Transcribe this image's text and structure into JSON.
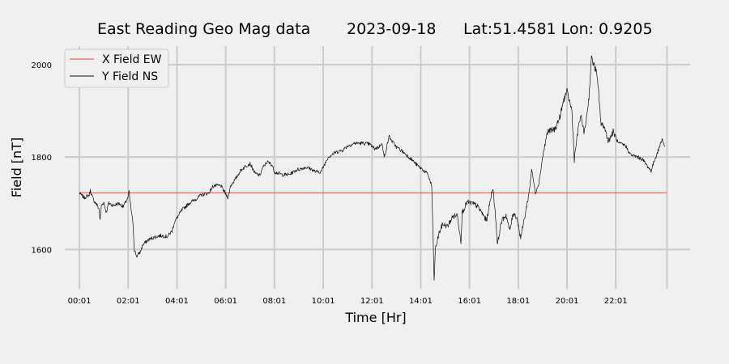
{
  "chart_data": {
    "type": "line",
    "title": {
      "name": "East Reading Geo Mag data",
      "date": "2023-09-18",
      "location": "Lat:51.4581  Lon: 0.9205"
    },
    "xlabel": "Time  [Hr]",
    "ylabel": "Field  [nT]",
    "x_unit": "hours",
    "xlim": [
      -0.6,
      25.05
    ],
    "ylim": [
      1515,
      2040
    ],
    "x_ticks": [
      {
        "x": 0.0,
        "label": "00:01"
      },
      {
        "x": 2.0,
        "label": "02:01"
      },
      {
        "x": 4.0,
        "label": "04:01"
      },
      {
        "x": 6.0,
        "label": "06:01"
      },
      {
        "x": 8.0,
        "label": "08:01"
      },
      {
        "x": 10.0,
        "label": "10:01"
      },
      {
        "x": 12.0,
        "label": "12:01"
      },
      {
        "x": 14.0,
        "label": "14:01"
      },
      {
        "x": 16.0,
        "label": "16:01"
      },
      {
        "x": 18.0,
        "label": "18:01"
      },
      {
        "x": 20.0,
        "label": "20:01"
      },
      {
        "x": 22.0,
        "label": "22:01"
      }
    ],
    "y_ticks": [
      1600,
      1800,
      2000
    ],
    "grid": true,
    "extra_x_gridlines": [
      24.1
    ],
    "legend": {
      "placement": "top-left"
    },
    "series": [
      {
        "name": "X Field EW",
        "color": "#e8432e",
        "points": [
          [
            0.0,
            1723
          ],
          [
            24.1,
            1723
          ]
        ]
      },
      {
        "name": "Y Field NS",
        "color": "#111111",
        "points": [
          [
            0.0,
            1722
          ],
          [
            0.2,
            1712
          ],
          [
            0.4,
            1718
          ],
          [
            0.45,
            1728
          ],
          [
            0.5,
            1718
          ],
          [
            0.6,
            1705
          ],
          [
            0.7,
            1698
          ],
          [
            0.8,
            1688
          ],
          [
            0.85,
            1662
          ],
          [
            0.9,
            1695
          ],
          [
            1.0,
            1702
          ],
          [
            1.1,
            1680
          ],
          [
            1.2,
            1700
          ],
          [
            1.4,
            1695
          ],
          [
            1.6,
            1700
          ],
          [
            1.8,
            1693
          ],
          [
            1.9,
            1703
          ],
          [
            2.0,
            1712
          ],
          [
            2.03,
            1728
          ],
          [
            2.1,
            1695
          ],
          [
            2.2,
            1655
          ],
          [
            2.25,
            1600
          ],
          [
            2.35,
            1585
          ],
          [
            2.5,
            1595
          ],
          [
            2.6,
            1610
          ],
          [
            2.8,
            1620
          ],
          [
            3.0,
            1625
          ],
          [
            3.3,
            1630
          ],
          [
            3.6,
            1628
          ],
          [
            3.8,
            1640
          ],
          [
            3.9,
            1660
          ],
          [
            4.0,
            1668
          ],
          [
            4.2,
            1685
          ],
          [
            4.5,
            1700
          ],
          [
            4.8,
            1710
          ],
          [
            5.0,
            1718
          ],
          [
            5.3,
            1722
          ],
          [
            5.5,
            1738
          ],
          [
            5.8,
            1738
          ],
          [
            6.0,
            1720
          ],
          [
            6.1,
            1712
          ],
          [
            6.2,
            1738
          ],
          [
            6.4,
            1752
          ],
          [
            6.6,
            1770
          ],
          [
            6.8,
            1780
          ],
          [
            7.0,
            1786
          ],
          [
            7.2,
            1765
          ],
          [
            7.4,
            1760
          ],
          [
            7.5,
            1775
          ],
          [
            7.7,
            1790
          ],
          [
            7.9,
            1783
          ],
          [
            8.0,
            1768
          ],
          [
            8.3,
            1762
          ],
          [
            8.6,
            1762
          ],
          [
            8.9,
            1772
          ],
          [
            9.1,
            1775
          ],
          [
            9.3,
            1778
          ],
          [
            9.5,
            1774
          ],
          [
            9.7,
            1768
          ],
          [
            9.9,
            1768
          ],
          [
            10.0,
            1778
          ],
          [
            10.2,
            1800
          ],
          [
            10.5,
            1810
          ],
          [
            10.8,
            1815
          ],
          [
            11.0,
            1824
          ],
          [
            11.3,
            1830
          ],
          [
            11.6,
            1830
          ],
          [
            11.9,
            1828
          ],
          [
            12.1,
            1818
          ],
          [
            12.3,
            1822
          ],
          [
            12.4,
            1832
          ],
          [
            12.5,
            1800
          ],
          [
            12.6,
            1820
          ],
          [
            12.7,
            1845
          ],
          [
            12.8,
            1836
          ],
          [
            13.0,
            1822
          ],
          [
            13.3,
            1810
          ],
          [
            13.6,
            1796
          ],
          [
            13.9,
            1780
          ],
          [
            14.1,
            1772
          ],
          [
            14.3,
            1762
          ],
          [
            14.45,
            1737
          ],
          [
            14.5,
            1640
          ],
          [
            14.55,
            1530
          ],
          [
            14.6,
            1600
          ],
          [
            14.75,
            1635
          ],
          [
            14.9,
            1655
          ],
          [
            15.1,
            1650
          ],
          [
            15.3,
            1670
          ],
          [
            15.5,
            1675
          ],
          [
            15.65,
            1618
          ],
          [
            15.7,
            1680
          ],
          [
            15.9,
            1702
          ],
          [
            16.1,
            1700
          ],
          [
            16.3,
            1695
          ],
          [
            16.5,
            1680
          ],
          [
            16.7,
            1662
          ],
          [
            16.85,
            1705
          ],
          [
            16.95,
            1735
          ],
          [
            17.05,
            1685
          ],
          [
            17.15,
            1610
          ],
          [
            17.3,
            1660
          ],
          [
            17.5,
            1675
          ],
          [
            17.65,
            1640
          ],
          [
            17.8,
            1680
          ],
          [
            17.95,
            1668
          ],
          [
            18.1,
            1625
          ],
          [
            18.3,
            1680
          ],
          [
            18.45,
            1725
          ],
          [
            18.55,
            1775
          ],
          [
            18.7,
            1722
          ],
          [
            18.85,
            1745
          ],
          [
            19.0,
            1800
          ],
          [
            19.2,
            1855
          ],
          [
            19.5,
            1860
          ],
          [
            19.7,
            1885
          ],
          [
            19.9,
            1930
          ],
          [
            20.0,
            1942
          ],
          [
            20.2,
            1900
          ],
          [
            20.3,
            1795
          ],
          [
            20.5,
            1878
          ],
          [
            20.6,
            1885
          ],
          [
            20.7,
            1850
          ],
          [
            20.8,
            1885
          ],
          [
            20.9,
            1930
          ],
          [
            21.0,
            2015
          ],
          [
            21.2,
            1985
          ],
          [
            21.3,
            1940
          ],
          [
            21.4,
            1868
          ],
          [
            21.5,
            1870
          ],
          [
            21.7,
            1835
          ],
          [
            21.9,
            1855
          ],
          [
            22.1,
            1830
          ],
          [
            22.4,
            1825
          ],
          [
            22.6,
            1805
          ],
          [
            22.9,
            1800
          ],
          [
            23.1,
            1795
          ],
          [
            23.3,
            1780
          ],
          [
            23.45,
            1770
          ],
          [
            23.6,
            1795
          ],
          [
            23.75,
            1815
          ],
          [
            23.9,
            1840
          ],
          [
            24.0,
            1822
          ]
        ]
      }
    ]
  }
}
